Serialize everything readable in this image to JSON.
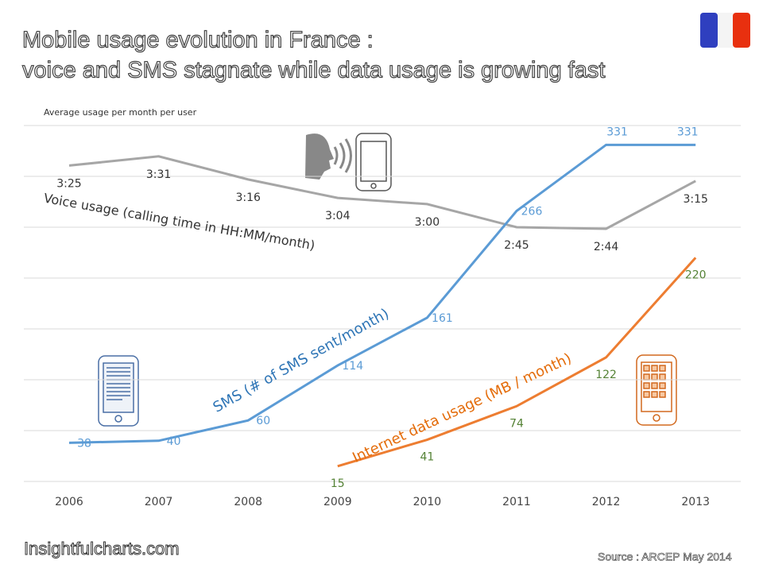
{
  "chart_data": {
    "type": "line",
    "title": "Mobile usage evolution in France :",
    "subtitle": "voice and SMS stagnate while data usage is growing fast",
    "y_label": "Average usage per month per user",
    "source": "Source : ARCEP May 2014",
    "brand": "Insightfulcharts.com",
    "categories": [
      "2006",
      "2007",
      "2008",
      "2009",
      "2010",
      "2011",
      "2012",
      "2013"
    ],
    "ylim": [
      0,
      350
    ],
    "yticks": [
      0,
      50,
      100,
      150,
      200,
      250,
      300,
      350
    ],
    "y2lim": [
      0,
      231
    ],
    "grid": true,
    "series": [
      {
        "name": "Voice usage (calling time in HH:MM/month)",
        "color": "#a6a6a6",
        "axis": "y2",
        "values": [
          205,
          211,
          196,
          184,
          180,
          165,
          164,
          195
        ],
        "value_labels": [
          "3:25",
          "3:31",
          "3:16",
          "3:04",
          "3:00",
          "2:45",
          "2:44",
          "3:15"
        ]
      },
      {
        "name": "SMS (# of SMS sent/month)",
        "color": "#5b9bd5",
        "values": [
          38,
          40,
          60,
          114,
          161,
          266,
          331,
          331
        ]
      },
      {
        "name": "Internet data usage (MB / month)",
        "color": "#ed7d31",
        "values": [
          null,
          null,
          null,
          15,
          41,
          74,
          122,
          220
        ]
      }
    ]
  }
}
